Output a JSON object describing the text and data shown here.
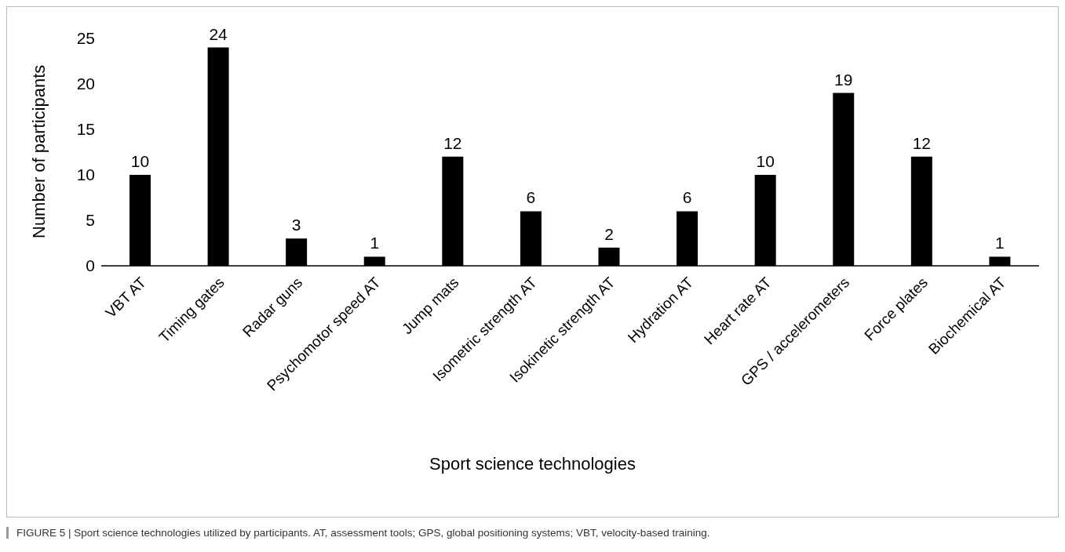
{
  "chart_data": {
    "type": "bar",
    "categories": [
      "VBT AT",
      "Timing gates",
      "Radar guns",
      "Psychomotor speed AT",
      "Jump mats",
      "Isometric strength AT",
      "Isokinetic strength AT",
      "Hydration AT",
      "Heart rate AT",
      "GPS / accelerometers",
      "Force plates",
      "Biochemical AT"
    ],
    "values": [
      10,
      24,
      3,
      1,
      12,
      6,
      2,
      6,
      10,
      19,
      12,
      1
    ],
    "color": "#000000",
    "ylim": [
      0,
      25
    ],
    "yticks": [
      0,
      5,
      10,
      15,
      20,
      25
    ],
    "ylabel": "Number of participants",
    "xlabel": "Sport science technologies",
    "data_labels": true,
    "grid": false,
    "legend": false,
    "annotations": [
      "FIGURE 5 | Sport science technologies utilized by participants. AT, assessment tools; GPS, global positioning systems; VBT, velocity-based training."
    ]
  }
}
